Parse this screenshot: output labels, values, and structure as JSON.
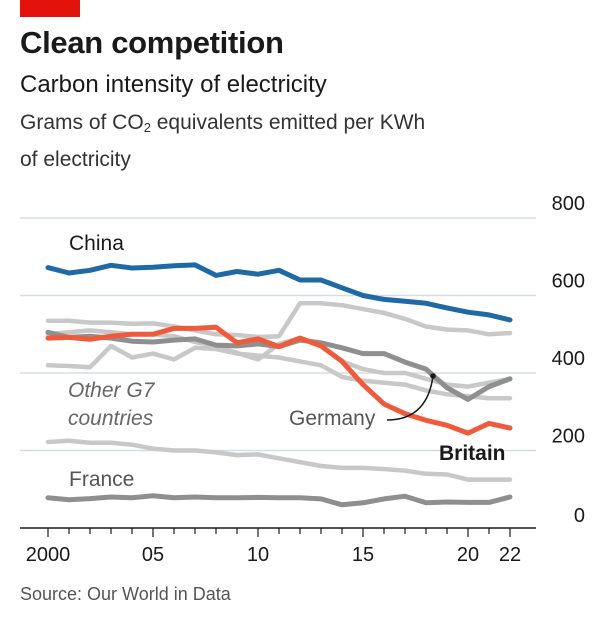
{
  "header": {
    "title": "Clean competition",
    "subtitle": "Carbon intensity of electricity",
    "units_prefix": "Grams of CO",
    "units_sub": "2",
    "units_suffix": " equivalents emitted per KWh of electricity"
  },
  "footer": {
    "source": "Source: Our World in Data"
  },
  "colors": {
    "accent": "#e3120b",
    "china": "#1f6aa5",
    "britain": "#f05a3c",
    "germany": "#8f8f8f",
    "france": "#8f8f8f",
    "other": "#c8c8c8"
  },
  "chart_data": {
    "type": "line",
    "xlim": [
      2000,
      2022
    ],
    "ylim": [
      0,
      800
    ],
    "yticks": [
      0,
      200,
      400,
      600,
      800
    ],
    "xticks": [
      2000,
      2005,
      2010,
      2015,
      2020,
      2022
    ],
    "xtick_labels": [
      "2000",
      "05",
      "10",
      "15",
      "20",
      "22"
    ],
    "grid": true,
    "x": [
      2000,
      2001,
      2002,
      2003,
      2004,
      2005,
      2006,
      2007,
      2008,
      2009,
      2010,
      2011,
      2012,
      2013,
      2014,
      2015,
      2016,
      2017,
      2018,
      2019,
      2020,
      2021,
      2022
    ],
    "series": [
      {
        "name": "China",
        "group": "highlight",
        "values": [
          672,
          658,
          665,
          678,
          671,
          673,
          677,
          679,
          652,
          662,
          655,
          665,
          640,
          640,
          620,
          600,
          590,
          585,
          580,
          568,
          557,
          550,
          537
        ]
      },
      {
        "name": "Britain",
        "group": "highlight",
        "values": [
          490,
          492,
          487,
          495,
          500,
          500,
          515,
          515,
          518,
          478,
          488,
          468,
          490,
          470,
          430,
          370,
          320,
          295,
          278,
          265,
          245,
          270,
          258
        ]
      },
      {
        "name": "Germany",
        "group": "mid",
        "values": [
          505,
          492,
          495,
          490,
          482,
          480,
          485,
          488,
          472,
          470,
          475,
          468,
          485,
          478,
          465,
          450,
          450,
          428,
          410,
          362,
          332,
          365,
          385
        ]
      },
      {
        "name": "France",
        "group": "mid",
        "values": [
          78,
          73,
          76,
          80,
          78,
          83,
          78,
          80,
          78,
          78,
          79,
          78,
          78,
          75,
          60,
          65,
          75,
          82,
          65,
          67,
          66,
          66,
          80
        ]
      },
      {
        "name": "",
        "group": "other",
        "values": [
          535,
          535,
          530,
          530,
          527,
          528,
          520,
          510,
          500,
          498,
          493,
          495,
          580,
          580,
          575,
          565,
          555,
          540,
          520,
          512,
          510,
          500,
          503
        ]
      },
      {
        "name": "",
        "group": "other",
        "values": [
          500,
          505,
          510,
          505,
          500,
          500,
          495,
          480,
          470,
          452,
          435,
          475,
          490,
          470,
          430,
          410,
          400,
          400,
          385,
          370,
          365,
          375,
          385
        ]
      },
      {
        "name": "",
        "group": "other",
        "values": [
          420,
          418,
          415,
          470,
          440,
          450,
          435,
          465,
          462,
          450,
          445,
          440,
          430,
          420,
          390,
          380,
          375,
          370,
          355,
          345,
          340,
          335,
          335
        ]
      },
      {
        "name": "",
        "group": "other",
        "values": [
          222,
          225,
          220,
          220,
          215,
          205,
          200,
          200,
          195,
          188,
          190,
          180,
          170,
          160,
          155,
          155,
          152,
          148,
          140,
          138,
          125,
          125,
          125
        ]
      }
    ],
    "labels": {
      "china": "China",
      "other": [
        "Other G7",
        "countries"
      ],
      "germany": "Germany",
      "britain": "Britain",
      "france": "France"
    }
  }
}
